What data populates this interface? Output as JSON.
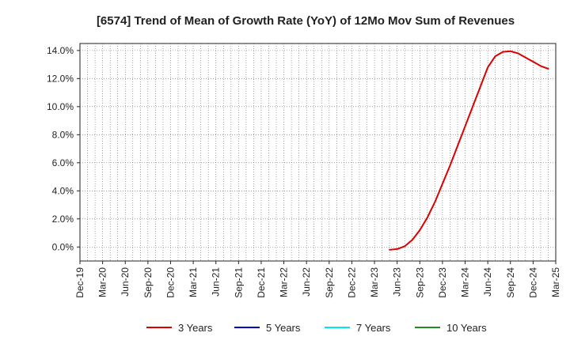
{
  "chart_data": {
    "type": "line",
    "title": "[6574]  Trend of Mean of Growth Rate (YoY) of 12Mo Mov Sum of Revenues",
    "xlabel": "",
    "ylabel": "",
    "x_tick_labels": [
      "Dec-19",
      "Mar-20",
      "Jun-20",
      "Sep-20",
      "Dec-20",
      "Mar-21",
      "Jun-21",
      "Sep-21",
      "Dec-21",
      "Mar-22",
      "Jun-22",
      "Sep-22",
      "Dec-22",
      "Mar-23",
      "Jun-23",
      "Sep-23",
      "Dec-23",
      "Mar-24",
      "Jun-24",
      "Sep-24",
      "Dec-24",
      "Mar-25"
    ],
    "x_range_months": [
      0,
      63
    ],
    "y_tick_labels": [
      "0.0%",
      "2.0%",
      "4.0%",
      "6.0%",
      "8.0%",
      "10.0%",
      "12.0%",
      "14.0%"
    ],
    "y_ticks": [
      0,
      2,
      4,
      6,
      8,
      10,
      12,
      14
    ],
    "ylim": [
      -1.0,
      14.5
    ],
    "grid": true,
    "legend_position": "bottom",
    "series": [
      {
        "name": "3 Years",
        "color": "#dd0000",
        "x_months": [
          41,
          42,
          43,
          44,
          45,
          46,
          47,
          48,
          49,
          50,
          51,
          52,
          53,
          54,
          55,
          56,
          57,
          58,
          59,
          60,
          61,
          62
        ],
        "values": [
          -0.2,
          -0.15,
          0.05,
          0.5,
          1.2,
          2.1,
          3.2,
          4.5,
          5.8,
          7.2,
          8.6,
          10.0,
          11.4,
          12.8,
          13.6,
          13.9,
          13.95,
          13.8,
          13.5,
          13.2,
          12.9,
          12.7
        ]
      },
      {
        "name": "5 Years",
        "color": "#0000cc",
        "x_months": [],
        "values": []
      },
      {
        "name": "7 Years",
        "color": "#00e5ee",
        "x_months": [],
        "values": []
      },
      {
        "name": "10 Years",
        "color": "#228b22",
        "x_months": [],
        "values": []
      }
    ]
  }
}
